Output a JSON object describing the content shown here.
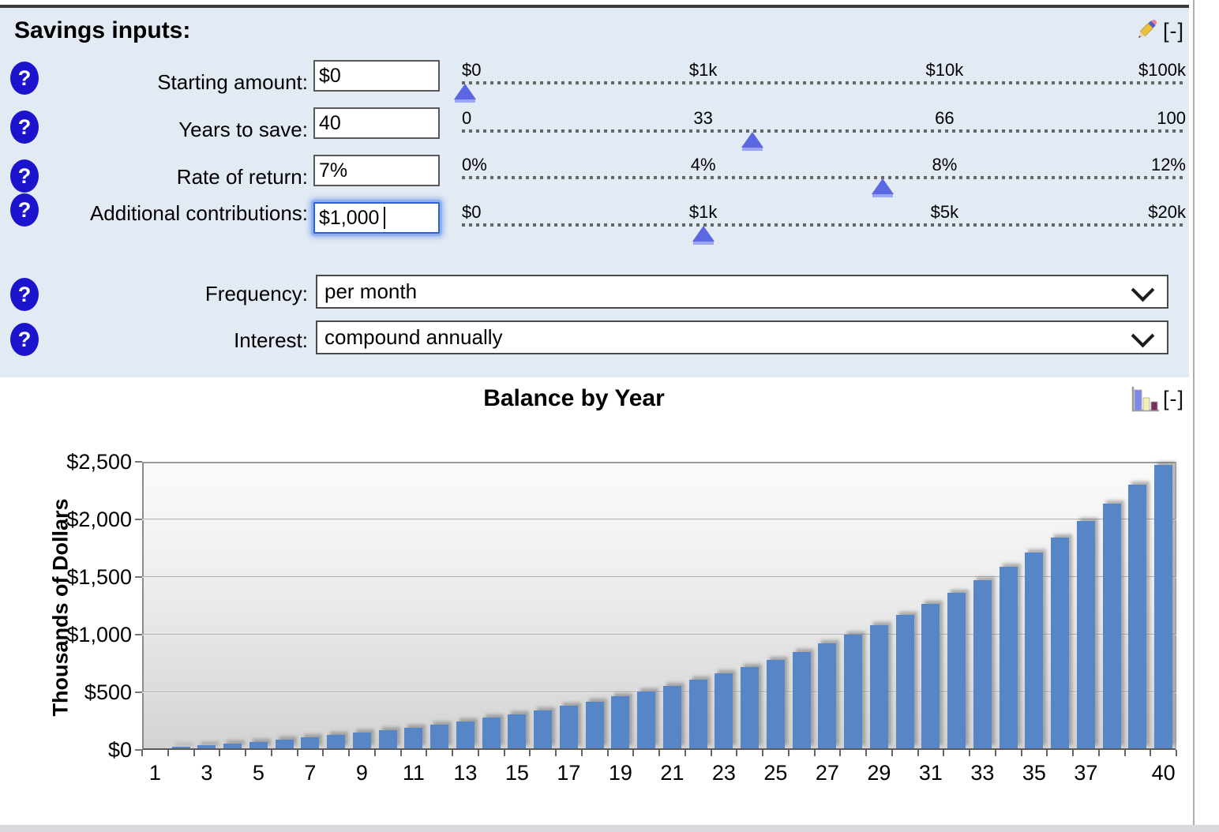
{
  "inputs_panel": {
    "heading": "Savings inputs:",
    "collapse_label": "[-]",
    "rows": [
      {
        "label": "Starting amount:",
        "value": "$0",
        "ticks": [
          "$0",
          "$1k",
          "$10k",
          "$100k"
        ],
        "thumb_pos": 0.004
      },
      {
        "label": "Years to save:",
        "value": "40",
        "ticks": [
          "0",
          "33",
          "66",
          "100"
        ],
        "thumb_pos": 0.401
      },
      {
        "label": "Rate of return:",
        "value": "7%",
        "ticks": [
          "0%",
          "4%",
          "8%",
          "12%"
        ],
        "thumb_pos": 0.581
      },
      {
        "label": "Additional contributions:",
        "value": "$1,000",
        "ticks": [
          "$0",
          "$1k",
          "$5k",
          "$20k"
        ],
        "thumb_pos": 0.334,
        "focused": true
      }
    ],
    "frequency": {
      "label": "Frequency:",
      "value": "per month"
    },
    "interest": {
      "label": "Interest:",
      "value": "compound annually"
    }
  },
  "chart_section": {
    "collapse_label": "[-]"
  },
  "chart_data": {
    "type": "bar",
    "title": "Balance by Year",
    "xlabel": "",
    "ylabel": "Thousands of Dollars",
    "ylim": [
      0,
      2500
    ],
    "grid": "horizontal",
    "legend": "none",
    "bar_color": "#5686c7",
    "ytick_labels": [
      "$0",
      "$500",
      "$1,000",
      "$1,500",
      "$2,000",
      "$2,500"
    ],
    "xtick_labels": [
      "1",
      "3",
      "5",
      "7",
      "9",
      "11",
      "13",
      "15",
      "17",
      "19",
      "21",
      "23",
      "25",
      "27",
      "29",
      "31",
      "33",
      "35",
      "37",
      "40"
    ],
    "categories": [
      1,
      2,
      3,
      4,
      5,
      6,
      7,
      8,
      9,
      10,
      11,
      12,
      13,
      14,
      15,
      16,
      17,
      18,
      19,
      20,
      21,
      22,
      23,
      24,
      25,
      26,
      27,
      28,
      29,
      30,
      31,
      32,
      33,
      34,
      35,
      36,
      37,
      38,
      39,
      40
    ],
    "series_name": "Balance (thousands of dollars)",
    "values": [
      12,
      26,
      40,
      55,
      71,
      89,
      107,
      127,
      148,
      171,
      195,
      222,
      249,
      279,
      311,
      345,
      382,
      421,
      463,
      508,
      556,
      607,
      662,
      721,
      783,
      851,
      922,
      999,
      1082,
      1170,
      1264,
      1365,
      1473,
      1588,
      1712,
      1844,
      1986,
      2137,
      2299,
      2472
    ]
  },
  "colors": {
    "panel_bg": "#e2eaf3",
    "help_icon": "#1c13cd",
    "slider_thumb": "#5b68e2",
    "focus_ring": "#8fb1ee",
    "bar": "#5686c7"
  }
}
